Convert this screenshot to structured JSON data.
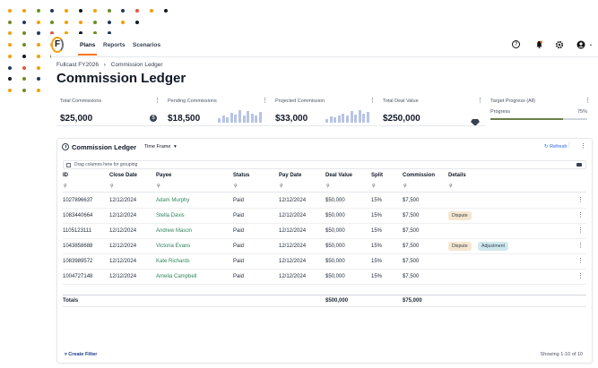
{
  "colors": {
    "dots": [
      "#f59e0b",
      "#6b8e23",
      "#1e3a5f",
      "#111827",
      "#e5533d",
      "#9ca3af"
    ],
    "accent": "#f97316",
    "link_green": "#2f855a",
    "refresh_blue": "#2563eb"
  },
  "nav": {
    "logo_letter": "F",
    "tabs": [
      {
        "label": "Plans",
        "active": true
      },
      {
        "label": "Reports",
        "active": false
      },
      {
        "label": "Scenarios",
        "active": false
      }
    ],
    "icons": [
      "help-circle-icon",
      "bell-icon",
      "gear-icon",
      "user-avatar-icon"
    ],
    "chevron": "⌄"
  },
  "breadcrumb": {
    "parent": "Fullcast FY2026",
    "separator": "›",
    "current": "Commission Ledger"
  },
  "page_title": "Commission Ledger",
  "kpis": [
    {
      "label": "Total Commissions",
      "value": "$25,000",
      "icon": "dollar-icon"
    },
    {
      "label": "Pending Commissions",
      "value": "$18,500",
      "icon": "sparkline"
    },
    {
      "label": "Projected Commission",
      "value": "$33,000",
      "icon": "sparkline"
    },
    {
      "label": "Total Deal Value",
      "value": "$250,000",
      "icon": "diamond-icon"
    }
  ],
  "sparklines": [
    [
      0.35,
      0.55,
      0.45,
      0.8,
      0.65,
      1.0,
      0.55,
      0.9,
      0.7,
      0.6,
      0.85
    ],
    [
      0.3,
      0.5,
      0.4,
      0.6,
      0.7,
      0.55,
      0.9,
      0.65,
      1.0,
      0.75,
      0.85
    ]
  ],
  "target": {
    "label": "Target Progress (All)",
    "progress_label": "Progress",
    "percent_text": "75%",
    "fraction": 0.75
  },
  "ledger": {
    "title": "Commission Ledger",
    "timeframe": "Time Frame",
    "timeframe_chevron": "▾",
    "refresh": "Refresh",
    "group_hint": "Drag columns here for grouping",
    "columns": [
      "ID",
      "Close Date",
      "Payee",
      "Status",
      "Pay Date",
      "Deal Value",
      "Split",
      "Commission",
      "Details"
    ],
    "rows": [
      {
        "id": "1027896637",
        "close": "12/12/2024",
        "payee": "Adam Murphy",
        "status": "Paid",
        "pay": "12/12/2024",
        "deal": "$50,000",
        "split": "15%",
        "commission": "$7,500",
        "details": []
      },
      {
        "id": "1083440664",
        "close": "12/12/2024",
        "payee": "Stella Davis",
        "status": "Paid",
        "pay": "12/12/2024",
        "deal": "$50,000",
        "split": "15%",
        "commission": "$7,500",
        "details": [
          "Dispute"
        ]
      },
      {
        "id": "1105123111",
        "close": "12/12/2024",
        "payee": "Andrew Mason",
        "status": "Paid",
        "pay": "12/12/2024",
        "deal": "$50,000",
        "split": "15%",
        "commission": "$7,500",
        "details": []
      },
      {
        "id": "1043858688",
        "close": "12/12/2024",
        "payee": "Victoria Evans",
        "status": "Paid",
        "pay": "12/12/2024",
        "deal": "$50,000",
        "split": "15%",
        "commission": "$7,500",
        "details": [
          "Dispute",
          "Adjustment"
        ]
      },
      {
        "id": "1083989572",
        "close": "12/12/2024",
        "payee": "Kate Richards",
        "status": "Paid",
        "pay": "12/12/2024",
        "deal": "$50,000",
        "split": "15%",
        "commission": "$7,500",
        "details": []
      },
      {
        "id": "1004727148",
        "close": "12/12/2024",
        "payee": "Amelia Campbell",
        "status": "Paid",
        "pay": "12/12/2024",
        "deal": "$50,000",
        "split": "15%",
        "commission": "$7,500",
        "details": []
      }
    ],
    "totals": {
      "label": "Totals",
      "deal": "$500,000",
      "commission": "$75,000"
    },
    "create_filter": "Create Filter",
    "create_filter_icon": "▿",
    "showing": "Showing 1-10 of 10"
  }
}
